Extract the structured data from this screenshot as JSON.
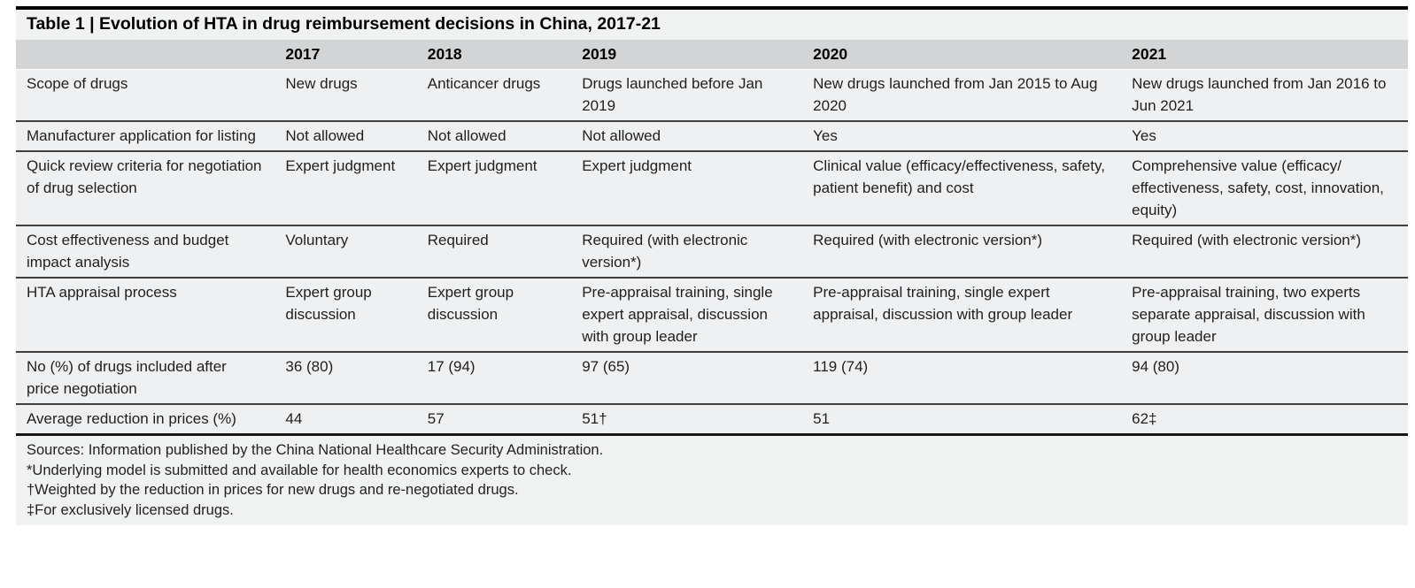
{
  "table": {
    "title": "Table 1 | Evolution of HTA in drug reimbursement decisions in China, 2017-21",
    "columns": [
      "",
      "2017",
      "2018",
      "2019",
      "2020",
      "2021"
    ],
    "rows": [
      {
        "label": "Scope of drugs",
        "values": [
          "New drugs",
          "Anticancer drugs",
          "Drugs launched before Jan 2019",
          "New drugs launched from Jan 2015 to Aug 2020",
          "New drugs launched from Jan 2016 to Jun 2021"
        ]
      },
      {
        "label": "Manufacturer application for listing",
        "values": [
          "Not allowed",
          "Not allowed",
          "Not allowed",
          "Yes",
          "Yes"
        ]
      },
      {
        "label": "Quick review criteria for negotiation of drug selection",
        "values": [
          "Expert judgment",
          "Expert judgment",
          "Expert judgment",
          "Clinical value (efficacy/effectiveness, safety, patient benefit) and cost",
          "Comprehensive value (efficacy/ effectiveness, safety, cost, innovation, equity)"
        ]
      },
      {
        "label": "Cost effectiveness and budget impact analysis",
        "values": [
          "Voluntary",
          "Required",
          "Required (with electronic version*)",
          "Required (with electronic version*)",
          "Required (with electronic version*)"
        ]
      },
      {
        "label": "HTA appraisal process",
        "values": [
          "Expert group discussion",
          "Expert group discussion",
          "Pre-appraisal training, single expert appraisal, discussion with group leader",
          "Pre-appraisal training, single expert appraisal, discussion with group leader",
          "Pre-appraisal training, two experts separate appraisal, discussion with group leader"
        ]
      },
      {
        "label": "No (%) of drugs included after price negotiation",
        "values": [
          "36 (80)",
          "17 (94)",
          "97 (65)",
          "119 (74)",
          "94 (80)"
        ]
      },
      {
        "label": "Average reduction in prices (%)",
        "values": [
          "44",
          "57",
          "51†",
          "51",
          "62‡"
        ]
      }
    ],
    "footnotes": [
      "Sources: Information published by the China National Healthcare Security Administration.",
      "*Underlying model is submitted and available for health economics experts to check.",
      "†Weighted by the reduction in prices for new drugs and re-negotiated drugs.",
      "‡For exclusively licensed drugs."
    ],
    "colors": {
      "caption_background": "#f0f1f1",
      "header_band_background": "#d2d4d5",
      "row_background": "#eff0f1",
      "rule_color": "#3e3e3e",
      "top_rule_color": "#000000"
    }
  }
}
